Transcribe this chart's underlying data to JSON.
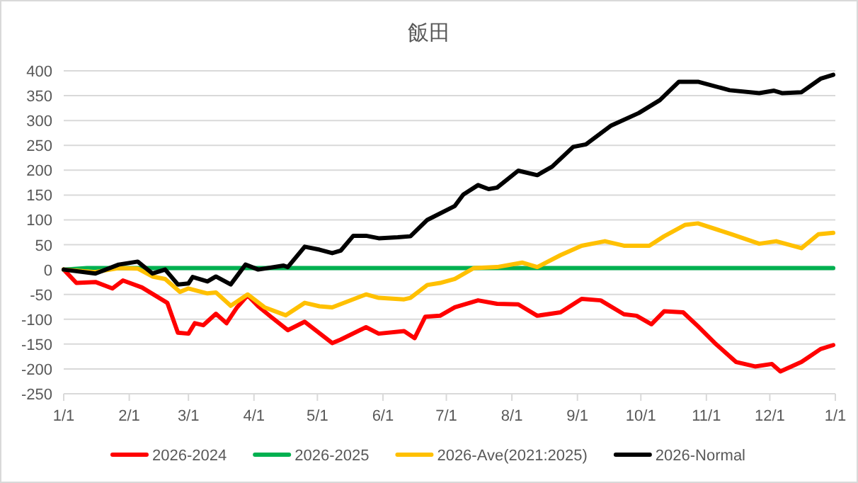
{
  "chart_data": {
    "type": "line",
    "title": "飯田",
    "xlim": [
      "2026-01-01",
      "2027-01-01"
    ],
    "ylim": [
      -250,
      400
    ],
    "yticks": [
      -250,
      -200,
      -150,
      -100,
      -50,
      0,
      50,
      100,
      150,
      200,
      250,
      300,
      350,
      400
    ],
    "xticks": [
      {
        "value": "2026-01-01",
        "label": "1/1"
      },
      {
        "value": "2026-02-01",
        "label": "2/1"
      },
      {
        "value": "2026-03-01",
        "label": "3/1"
      },
      {
        "value": "2026-04-01",
        "label": "4/1"
      },
      {
        "value": "2026-05-01",
        "label": "5/1"
      },
      {
        "value": "2026-06-01",
        "label": "6/1"
      },
      {
        "value": "2026-07-01",
        "label": "7/1"
      },
      {
        "value": "2026-08-01",
        "label": "8/1"
      },
      {
        "value": "2026-09-01",
        "label": "9/1"
      },
      {
        "value": "2026-10-01",
        "label": "10/1"
      },
      {
        "value": "2026-11-01",
        "label": "11/1"
      },
      {
        "value": "2026-12-01",
        "label": "12/1"
      },
      {
        "value": "2027-01-01",
        "label": "1/1"
      }
    ],
    "grid": "y",
    "legend": "bottom",
    "marker": "none",
    "line_style": "solid",
    "series": [
      {
        "name": "2026-2024",
        "color": "#ff0000",
        "x": [
          "2026-01-01",
          "2026-01-07",
          "2026-01-16",
          "2026-01-24",
          "2026-01-29",
          "2026-02-07",
          "2026-02-19",
          "2026-02-24",
          "2026-03-01",
          "2026-03-04",
          "2026-03-08",
          "2026-03-14",
          "2026-03-19",
          "2026-03-24",
          "2026-03-29",
          "2026-04-03",
          "2026-04-09",
          "2026-04-17",
          "2026-04-25",
          "2026-05-08",
          "2026-05-12",
          "2026-05-24",
          "2026-05-30",
          "2026-06-11",
          "2026-06-16",
          "2026-06-21",
          "2026-06-28",
          "2026-07-05",
          "2026-07-16",
          "2026-07-25",
          "2026-08-04",
          "2026-08-13",
          "2026-08-24",
          "2026-09-03",
          "2026-09-12",
          "2026-09-23",
          "2026-09-29",
          "2026-10-06",
          "2026-10-12",
          "2026-10-21",
          "2026-10-28",
          "2026-11-05",
          "2026-11-15",
          "2026-11-24",
          "2026-12-02",
          "2026-12-06",
          "2026-12-16",
          "2026-12-25",
          "2026-12-31"
        ],
        "values": [
          0,
          -27,
          -25,
          -38,
          -22,
          -36,
          -67,
          -127,
          -129,
          -108,
          -112,
          -89,
          -108,
          -76,
          -52,
          -74,
          -95,
          -122,
          -105,
          -148,
          -141,
          -116,
          -129,
          -124,
          -138,
          -95,
          -93,
          -76,
          -62,
          -69,
          -70,
          -93,
          -86,
          -59,
          -62,
          -90,
          -93,
          -110,
          -84,
          -86,
          -114,
          -148,
          -186,
          -195,
          -190,
          -205,
          -186,
          -160,
          -152
        ]
      },
      {
        "name": "2026-2025",
        "color": "#00b050",
        "x": [
          "2026-01-01",
          "2026-01-12",
          "2026-04-01",
          "2026-07-01",
          "2026-10-01",
          "2026-12-31"
        ],
        "values": [
          0,
          3,
          3,
          3,
          3,
          3
        ]
      },
      {
        "name": "2026-Ave(2021:2025)",
        "color": "#ffc000",
        "x": [
          "2026-01-01",
          "2026-01-16",
          "2026-01-27",
          "2026-02-05",
          "2026-02-12",
          "2026-02-18",
          "2026-02-25",
          "2026-03-01",
          "2026-03-10",
          "2026-03-14",
          "2026-03-21",
          "2026-03-29",
          "2026-04-06",
          "2026-04-16",
          "2026-04-25",
          "2026-05-02",
          "2026-05-08",
          "2026-05-24",
          "2026-05-30",
          "2026-06-11",
          "2026-06-14",
          "2026-06-22",
          "2026-06-28",
          "2026-07-05",
          "2026-07-14",
          "2026-07-25",
          "2026-08-06",
          "2026-08-13",
          "2026-08-24",
          "2026-09-03",
          "2026-09-14",
          "2026-09-23",
          "2026-10-05",
          "2026-10-12",
          "2026-10-22",
          "2026-10-28",
          "2026-11-13",
          "2026-11-26",
          "2026-12-04",
          "2026-12-16",
          "2026-12-24",
          "2026-12-31"
        ],
        "values": [
          0,
          -5,
          3,
          2,
          -14,
          -19,
          -45,
          -38,
          -48,
          -46,
          -73,
          -50,
          -76,
          -92,
          -67,
          -74,
          -76,
          -50,
          -57,
          -60,
          -57,
          -31,
          -27,
          -19,
          3,
          5,
          14,
          5,
          29,
          48,
          57,
          48,
          48,
          67,
          90,
          93,
          71,
          52,
          57,
          43,
          71,
          74
        ]
      },
      {
        "name": "2026-Normal",
        "color": "#000000",
        "x": [
          "2026-01-01",
          "2026-01-16",
          "2026-01-27",
          "2026-02-05",
          "2026-02-12",
          "2026-02-18",
          "2026-02-24",
          "2026-03-01",
          "2026-03-03",
          "2026-03-10",
          "2026-03-14",
          "2026-03-21",
          "2026-03-28",
          "2026-04-03",
          "2026-04-15",
          "2026-04-17",
          "2026-04-25",
          "2026-05-02",
          "2026-05-08",
          "2026-05-12",
          "2026-05-18",
          "2026-05-24",
          "2026-05-30",
          "2026-06-08",
          "2026-06-14",
          "2026-06-22",
          "2026-07-05",
          "2026-07-09",
          "2026-07-16",
          "2026-07-21",
          "2026-07-25",
          "2026-08-04",
          "2026-08-13",
          "2026-08-20",
          "2026-08-30",
          "2026-09-05",
          "2026-09-17",
          "2026-09-30",
          "2026-10-10",
          "2026-10-19",
          "2026-10-28",
          "2026-11-12",
          "2026-11-26",
          "2026-12-03",
          "2026-12-07",
          "2026-12-16",
          "2026-12-25",
          "2026-12-31"
        ],
        "values": [
          0,
          -8,
          10,
          16,
          -8,
          0,
          -30,
          -28,
          -15,
          -24,
          -14,
          -30,
          10,
          0,
          8,
          5,
          46,
          40,
          33,
          38,
          68,
          68,
          63,
          65,
          67,
          100,
          128,
          151,
          170,
          162,
          165,
          199,
          190,
          207,
          247,
          252,
          290,
          315,
          341,
          378,
          378,
          361,
          355,
          360,
          355,
          357,
          384,
          392
        ]
      }
    ]
  }
}
